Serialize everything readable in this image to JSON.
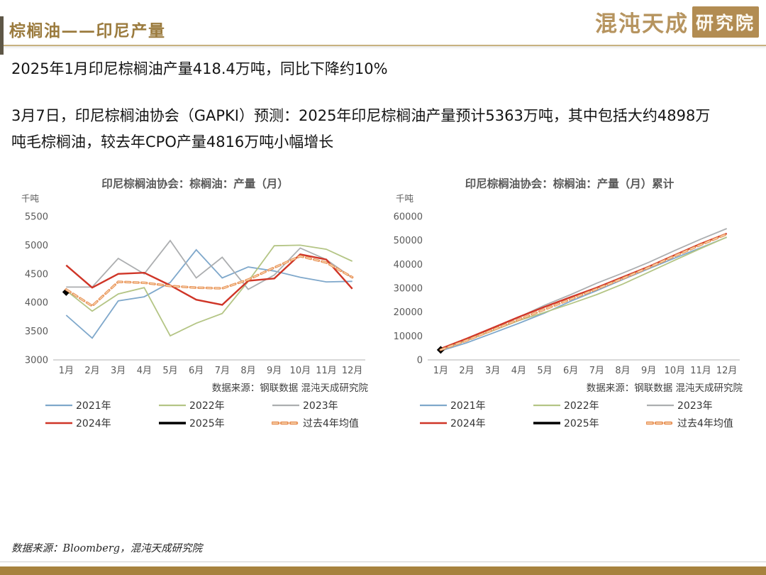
{
  "header": {
    "title": "棕榈油——印尼产量",
    "logo_brand": "混沌天成",
    "logo_seal": "研究院"
  },
  "body": {
    "paragraph1": "2025年1月印尼棕榈油产量418.4万吨，同比下降约10%",
    "paragraph2": "3月7日，印尼棕榈油协会（GAPKI）预测：2025年印尼棕榈油产量预计5363万吨，其中包括大约4898万吨毛棕榈油，较去年CPO产量4816万吨小幅增长"
  },
  "footer": {
    "source": "数据来源：Bloomberg，混沌天成研究院"
  },
  "colors": {
    "accent_gold": "#9B7B3E",
    "header_rule": "#C7B280",
    "logo_tan": "#B6945F",
    "seal_background": "#B28C52",
    "bottom_bar": "#A7823E",
    "chart_text": "#595959",
    "axis_line": "#C0C0C0"
  },
  "chart_data": [
    {
      "type": "line",
      "title": "印尼棕榈油协会：棕榈油：产量（月）",
      "unit_label": "千吨",
      "source": "数据来源：钢联数据  混沌天成研究院",
      "categories": [
        "1月",
        "2月",
        "3月",
        "4月",
        "5月",
        "6月",
        "7月",
        "8月",
        "9月",
        "10月",
        "11月",
        "12月"
      ],
      "ylim": [
        3000,
        5500
      ],
      "yticks": [
        3000,
        3500,
        4000,
        4500,
        5000,
        5500
      ],
      "grid": false,
      "legend_position": "bottom",
      "series": [
        {
          "name": "2021年",
          "color": "#7FA8CB",
          "values": [
            3780,
            3380,
            4030,
            4100,
            4350,
            4920,
            4430,
            4620,
            4550,
            4440,
            4360,
            4370
          ]
        },
        {
          "name": "2022年",
          "color": "#B4C585",
          "values": [
            4210,
            3850,
            4150,
            4260,
            3420,
            3640,
            3810,
            4370,
            4990,
            5000,
            4930,
            4720
          ]
        },
        {
          "name": "2023年",
          "color": "#ACAEB0",
          "values": [
            4270,
            4270,
            4770,
            4500,
            5080,
            4430,
            4790,
            4230,
            4480,
            4950,
            4750,
            4430
          ]
        },
        {
          "name": "2024年",
          "color": "#CF3527",
          "values": [
            4650,
            4260,
            4500,
            4520,
            4300,
            4050,
            3960,
            4380,
            4420,
            4840,
            4750,
            4240
          ],
          "width": 2.4
        },
        {
          "name": "2025年",
          "color": "#000000",
          "values": [
            4184
          ],
          "marker": "diamond",
          "width": 3.4
        },
        {
          "name": "过去4年均值",
          "color": "#E8935A",
          "values": [
            4228,
            3940,
            4362,
            4345,
            4288,
            4260,
            4248,
            4400,
            4610,
            4808,
            4698,
            4440
          ],
          "dashed": true
        }
      ]
    },
    {
      "type": "line",
      "title": "印尼棕榈油协会：棕榈油：产量（月）累计",
      "unit_label": "千吨",
      "source": "数据来源：钢联数据  混沌天成研究院",
      "categories": [
        "1月",
        "2月",
        "3月",
        "4月",
        "5月",
        "6月",
        "7月",
        "8月",
        "9月",
        "10月",
        "11月",
        "12月"
      ],
      "ylim": [
        0,
        60000
      ],
      "yticks": [
        0,
        10000,
        20000,
        30000,
        40000,
        50000,
        60000
      ],
      "grid": false,
      "legend_position": "bottom",
      "series": [
        {
          "name": "2021年",
          "color": "#7FA8CB",
          "values": [
            3780,
            7160,
            11190,
            15290,
            19640,
            24560,
            28990,
            33610,
            38160,
            42600,
            46960,
            51330
          ]
        },
        {
          "name": "2022年",
          "color": "#B4C585",
          "values": [
            4210,
            8060,
            12210,
            16470,
            19890,
            23530,
            27340,
            31710,
            36700,
            41700,
            46630,
            51350
          ]
        },
        {
          "name": "2023年",
          "color": "#ACAEB0",
          "values": [
            4270,
            8540,
            13310,
            17810,
            22890,
            27320,
            32110,
            36340,
            40820,
            45770,
            50520,
            54950
          ]
        },
        {
          "name": "2024年",
          "color": "#CF3527",
          "values": [
            4650,
            8910,
            13410,
            17930,
            22230,
            26280,
            30240,
            34620,
            39040,
            43880,
            48630,
            52870
          ],
          "width": 2.4
        },
        {
          "name": "2025年",
          "color": "#000000",
          "values": [
            4184
          ],
          "marker": "diamond",
          "width": 3.4
        },
        {
          "name": "过去4年均值",
          "color": "#E8935A",
          "values": [
            4228,
            8168,
            12530,
            16875,
            21163,
            25423,
            29670,
            34070,
            38680,
            43488,
            48185,
            52625
          ],
          "dashed": true
        }
      ]
    }
  ]
}
